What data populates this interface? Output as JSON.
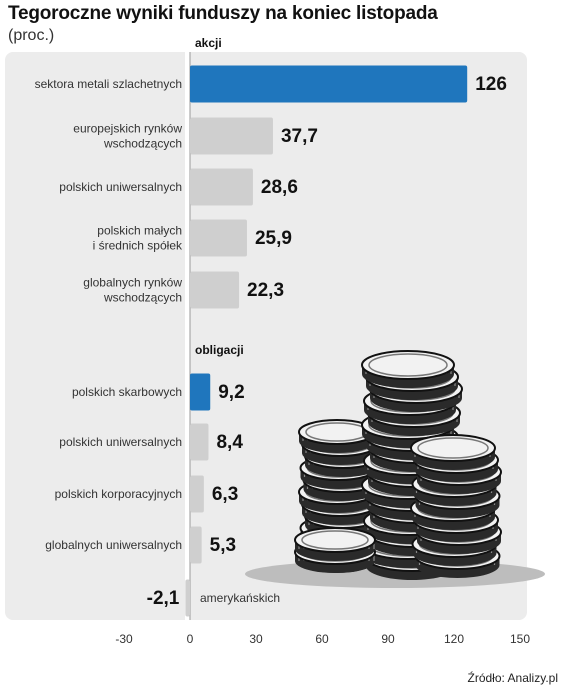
{
  "header": {
    "title": "Tegoroczne wyniki funduszy na koniec listopada",
    "subtitle": "(proc.)"
  },
  "footer": {
    "source": "Źródło: Analizy.pl"
  },
  "colors": {
    "highlight": "#1f76bd",
    "bar": "#cfcfcf",
    "panel": "#ececec"
  },
  "illustration": "coin-stacks",
  "chart_data": {
    "type": "bar",
    "orientation": "horizontal",
    "xlim": [
      -30,
      150
    ],
    "xticks": [
      "-30",
      "0",
      "30",
      "60",
      "90",
      "120",
      "150"
    ],
    "sections": [
      {
        "name": "akcji",
        "items": [
          {
            "label": "sektora metali szlachetnych",
            "value": 126,
            "display": "126",
            "highlight": true
          },
          {
            "label": "europejskich rynków\nwschodzących",
            "value": 37.7,
            "display": "37,7",
            "highlight": false
          },
          {
            "label": "polskich uniwersalnych",
            "value": 28.6,
            "display": "28,6",
            "highlight": false
          },
          {
            "label": "polskich małych\ni średnich spółek",
            "value": 25.9,
            "display": "25,9",
            "highlight": false
          },
          {
            "label": "globalnych rynków\nwschodzących",
            "value": 22.3,
            "display": "22,3",
            "highlight": false
          }
        ]
      },
      {
        "name": "obligacji",
        "items": [
          {
            "label": "polskich skarbowych",
            "value": 9.2,
            "display": "9,2",
            "highlight": true
          },
          {
            "label": "polskich uniwersalnych",
            "value": 8.4,
            "display": "8,4",
            "highlight": false
          },
          {
            "label": "polskich korporacyjnych",
            "value": 6.3,
            "display": "6,3",
            "highlight": false
          },
          {
            "label": "globalnych uniwersalnych",
            "value": 5.3,
            "display": "5,3",
            "highlight": false
          },
          {
            "label": "amerykańskich",
            "value": -2.1,
            "display": "-2,1",
            "highlight": false
          }
        ]
      }
    ]
  }
}
